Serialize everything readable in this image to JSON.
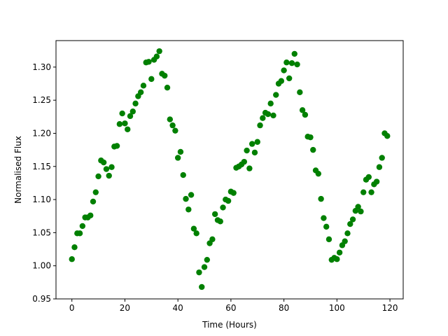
{
  "chart_data": {
    "type": "scatter",
    "title": "",
    "xlabel": "Time (Hours)",
    "ylabel": "Normalised Flux",
    "xlim": [
      -6,
      125
    ],
    "ylim": [
      0.95,
      1.34
    ],
    "xticks": [
      0,
      20,
      40,
      60,
      80,
      100,
      120
    ],
    "yticks": [
      0.95,
      1.0,
      1.05,
      1.1,
      1.15,
      1.2,
      1.25,
      1.3
    ],
    "ytick_labels": [
      "0.95",
      "1.00",
      "1.05",
      "1.10",
      "1.15",
      "1.20",
      "1.25",
      "1.30"
    ],
    "grid": false,
    "marker_color": "#008000",
    "series": [
      {
        "points": [
          [
            0,
            1.01
          ],
          [
            1,
            1.028
          ],
          [
            2,
            1.049
          ],
          [
            3,
            1.049
          ],
          [
            4,
            1.06
          ],
          [
            5,
            1.073
          ],
          [
            6,
            1.073
          ],
          [
            7,
            1.076
          ],
          [
            8,
            1.097
          ],
          [
            9,
            1.111
          ],
          [
            10,
            1.135
          ],
          [
            11,
            1.159
          ],
          [
            12,
            1.156
          ],
          [
            13,
            1.146
          ],
          [
            14,
            1.136
          ],
          [
            15,
            1.149
          ],
          [
            16,
            1.18
          ],
          [
            17,
            1.181
          ],
          [
            18,
            1.214
          ],
          [
            19,
            1.23
          ],
          [
            20,
            1.215
          ],
          [
            21,
            1.206
          ],
          [
            22,
            1.226
          ],
          [
            23,
            1.233
          ],
          [
            24,
            1.245
          ],
          [
            25,
            1.256
          ],
          [
            26,
            1.262
          ],
          [
            27,
            1.272
          ],
          [
            28,
            1.307
          ],
          [
            29,
            1.308
          ],
          [
            30,
            1.282
          ],
          [
            31,
            1.311
          ],
          [
            32,
            1.316
          ],
          [
            33,
            1.324
          ],
          [
            34,
            1.29
          ],
          [
            35,
            1.287
          ],
          [
            36,
            1.269
          ],
          [
            37,
            1.221
          ],
          [
            38,
            1.212
          ],
          [
            39,
            1.204
          ],
          [
            40,
            1.163
          ],
          [
            41,
            1.172
          ],
          [
            42,
            1.137
          ],
          [
            43,
            1.101
          ],
          [
            44,
            1.085
          ],
          [
            45,
            1.107
          ],
          [
            46,
            1.056
          ],
          [
            47,
            1.049
          ],
          [
            48,
            0.99
          ],
          [
            49,
            0.968
          ],
          [
            50,
            0.998
          ],
          [
            51,
            1.009
          ],
          [
            52,
            1.034
          ],
          [
            53,
            1.04
          ],
          [
            54,
            1.078
          ],
          [
            55,
            1.069
          ],
          [
            56,
            1.067
          ],
          [
            57,
            1.088
          ],
          [
            58,
            1.1
          ],
          [
            59,
            1.098
          ],
          [
            60,
            1.112
          ],
          [
            61,
            1.11
          ],
          [
            62,
            1.148
          ],
          [
            63,
            1.15
          ],
          [
            64,
            1.153
          ],
          [
            65,
            1.157
          ],
          [
            66,
            1.174
          ],
          [
            67,
            1.147
          ],
          [
            68,
            1.184
          ],
          [
            69,
            1.171
          ],
          [
            70,
            1.187
          ],
          [
            71,
            1.212
          ],
          [
            72,
            1.223
          ],
          [
            73,
            1.231
          ],
          [
            74,
            1.229
          ],
          [
            75,
            1.245
          ],
          [
            76,
            1.227
          ],
          [
            77,
            1.258
          ],
          [
            78,
            1.275
          ],
          [
            79,
            1.279
          ],
          [
            80,
            1.295
          ],
          [
            81,
            1.307
          ],
          [
            82,
            1.283
          ],
          [
            83,
            1.306
          ],
          [
            84,
            1.32
          ],
          [
            85,
            1.304
          ],
          [
            86,
            1.262
          ],
          [
            87,
            1.235
          ],
          [
            88,
            1.228
          ],
          [
            89,
            1.195
          ],
          [
            90,
            1.194
          ],
          [
            91,
            1.175
          ],
          [
            92,
            1.144
          ],
          [
            93,
            1.139
          ],
          [
            94,
            1.101
          ],
          [
            95,
            1.072
          ],
          [
            96,
            1.059
          ],
          [
            97,
            1.04
          ],
          [
            98,
            1.009
          ],
          [
            99,
            1.012
          ],
          [
            100,
            1.01
          ],
          [
            101,
            1.02
          ],
          [
            102,
            1.031
          ],
          [
            103,
            1.037
          ],
          [
            104,
            1.049
          ],
          [
            105,
            1.063
          ],
          [
            106,
            1.07
          ],
          [
            107,
            1.083
          ],
          [
            108,
            1.089
          ],
          [
            109,
            1.082
          ],
          [
            110,
            1.111
          ],
          [
            111,
            1.13
          ],
          [
            112,
            1.134
          ],
          [
            113,
            1.111
          ],
          [
            114,
            1.123
          ],
          [
            115,
            1.127
          ],
          [
            116,
            1.149
          ],
          [
            117,
            1.163
          ],
          [
            118,
            1.2
          ],
          [
            119,
            1.196
          ]
        ]
      }
    ]
  }
}
